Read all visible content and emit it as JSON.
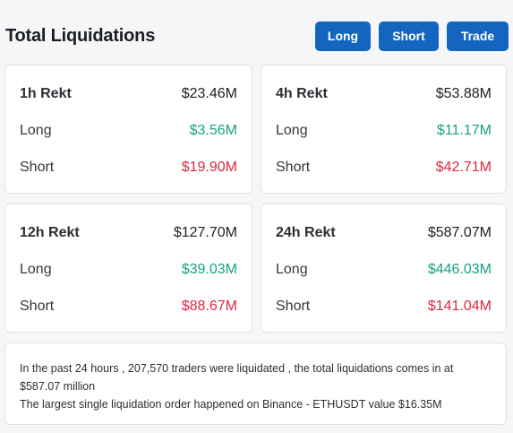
{
  "header": {
    "title": "Total Liquidations",
    "buttons": {
      "long": "Long",
      "short": "Short",
      "trade": "Trade"
    }
  },
  "cards": [
    {
      "period": "1h Rekt",
      "total": "$23.46M",
      "long_label": "Long",
      "long": "$3.56M",
      "short_label": "Short",
      "short": "$19.90M"
    },
    {
      "period": "4h Rekt",
      "total": "$53.88M",
      "long_label": "Long",
      "long": "$11.17M",
      "short_label": "Short",
      "short": "$42.71M"
    },
    {
      "period": "12h Rekt",
      "total": "$127.70M",
      "long_label": "Long",
      "long": "$39.03M",
      "short_label": "Short",
      "short": "$88.67M"
    },
    {
      "period": "24h Rekt",
      "total": "$587.07M",
      "long_label": "Long",
      "long": "$446.03M",
      "short_label": "Short",
      "short": "$141.04M"
    }
  ],
  "summary": {
    "line1": "In the past 24 hours , 207,570 traders were liquidated , the total liquidations comes in at $587.07 million",
    "line2": "The largest single liquidation order happened on Binance - ETHUSDT value $16.35M"
  },
  "colors": {
    "accent": "#1565c0",
    "long": "#16a086",
    "short": "#dc2742"
  }
}
